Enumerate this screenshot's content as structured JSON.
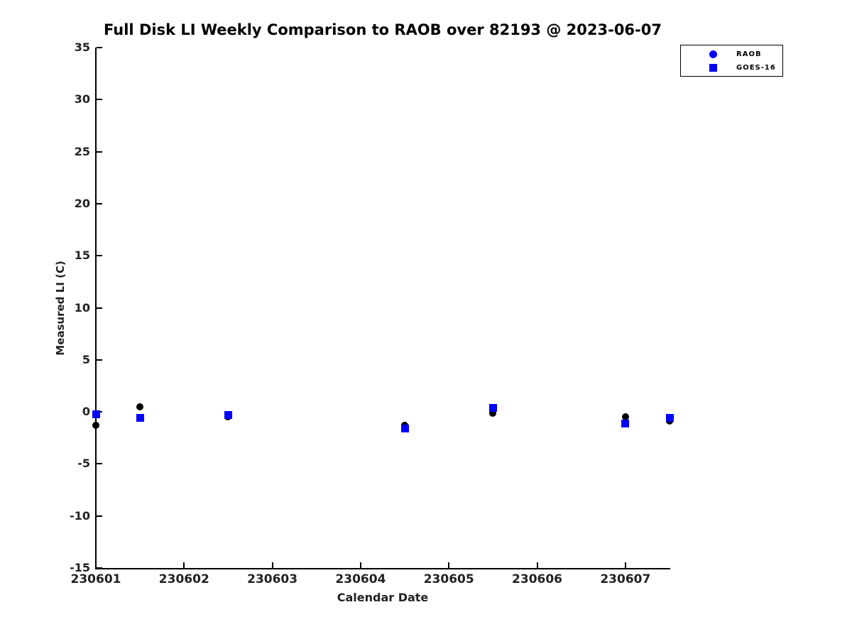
{
  "figure": {
    "background": "#ffffff"
  },
  "chart_data": {
    "type": "scatter",
    "title": "Full Disk LI Weekly Comparison to RAOB over 82193 @ 2023-06-07",
    "xlabel": "Calendar Date",
    "ylabel": "Measured LI (C)",
    "xlim": [
      230601,
      230607.5
    ],
    "ylim": [
      -15,
      35
    ],
    "x_tick_labels": [
      "230601",
      "230602",
      "230603",
      "230604",
      "230605",
      "230606",
      "230607"
    ],
    "x_tick_values": [
      230601,
      230602,
      230603,
      230604,
      230605,
      230606,
      230607
    ],
    "y_ticks": [
      35,
      30,
      25,
      20,
      15,
      10,
      5,
      0,
      -5,
      -10,
      -15
    ],
    "grid": false,
    "legend": {
      "position": "top-right-outside",
      "entries": [
        "RAOB",
        "GOES-16"
      ]
    },
    "series": [
      {
        "name": "RAOB",
        "marker": "circle",
        "plot_color": "#000000",
        "legend_color": "#0000ff",
        "x": [
          230601,
          230601.5,
          230602.5,
          230604.5,
          230605.5,
          230607,
          230607.5
        ],
        "y": [
          -1.3,
          0.5,
          -0.5,
          -1.3,
          -0.1,
          -0.5,
          -0.9
        ]
      },
      {
        "name": "GOES-16",
        "marker": "square",
        "plot_color": "#0000ff",
        "legend_color": "#0000ff",
        "x": [
          230601,
          230601.5,
          230602.5,
          230604.5,
          230605.5,
          230607,
          230607.5
        ],
        "y": [
          -0.2,
          -0.6,
          -0.3,
          -1.6,
          0.4,
          -1.1,
          -0.6
        ]
      }
    ]
  },
  "colors": {
    "axis": "#000000",
    "tick_text": "#222222",
    "blue": "#0000ff",
    "black": "#000000",
    "background": "#ffffff"
  }
}
